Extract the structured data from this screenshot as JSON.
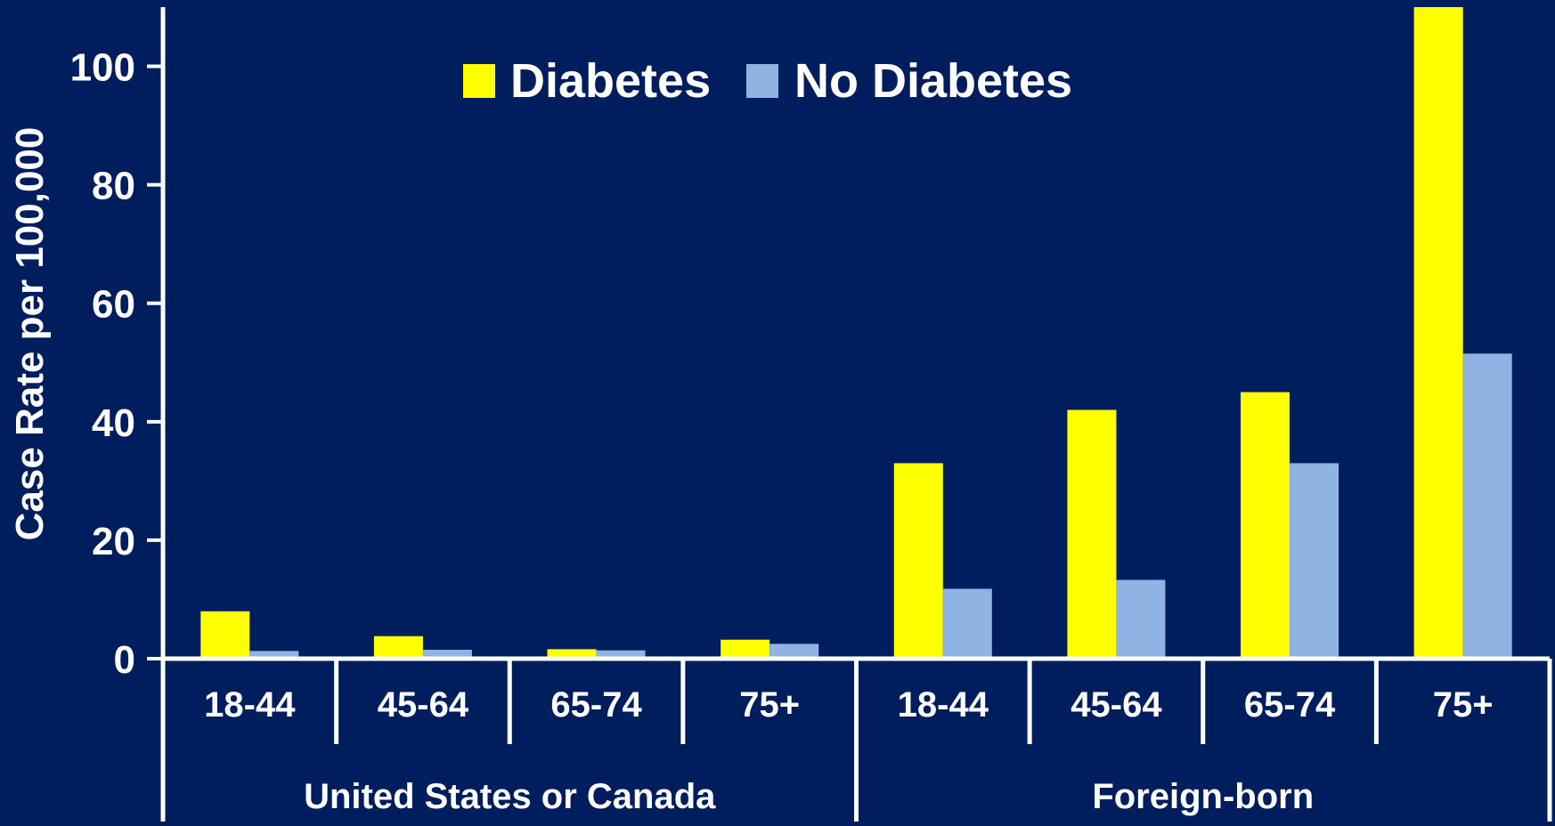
{
  "chart_data": {
    "type": "bar",
    "ylabel": "Case Rate per 100,000",
    "xlabel": "",
    "ylim": [
      0,
      110
    ],
    "yticks": [
      0,
      20,
      40,
      60,
      80,
      100
    ],
    "grid": false,
    "legend_position": "top-center",
    "categories": [
      "18-44",
      "45-64",
      "65-74",
      "75+",
      "18-44",
      "45-64",
      "65-74",
      "75+"
    ],
    "groups": [
      {
        "label": "United States or Canada",
        "categories": [
          "18-44",
          "45-64",
          "65-74",
          "75+"
        ]
      },
      {
        "label": "Foreign-born",
        "categories": [
          "18-44",
          "45-64",
          "65-74",
          "75+"
        ]
      }
    ],
    "series": [
      {
        "name": "Diabetes",
        "color": "#ffff00",
        "values": [
          8,
          3.8,
          1.6,
          3.2,
          33,
          42,
          45,
          110
        ]
      },
      {
        "name": "No Diabetes",
        "color": "#8db4e2",
        "values": [
          1.3,
          1.5,
          1.4,
          2.5,
          11.8,
          13.3,
          33,
          51.5
        ]
      }
    ],
    "colors": {
      "background": "#001e5e",
      "axis": "#ffffff",
      "text": "#ffffff"
    }
  }
}
